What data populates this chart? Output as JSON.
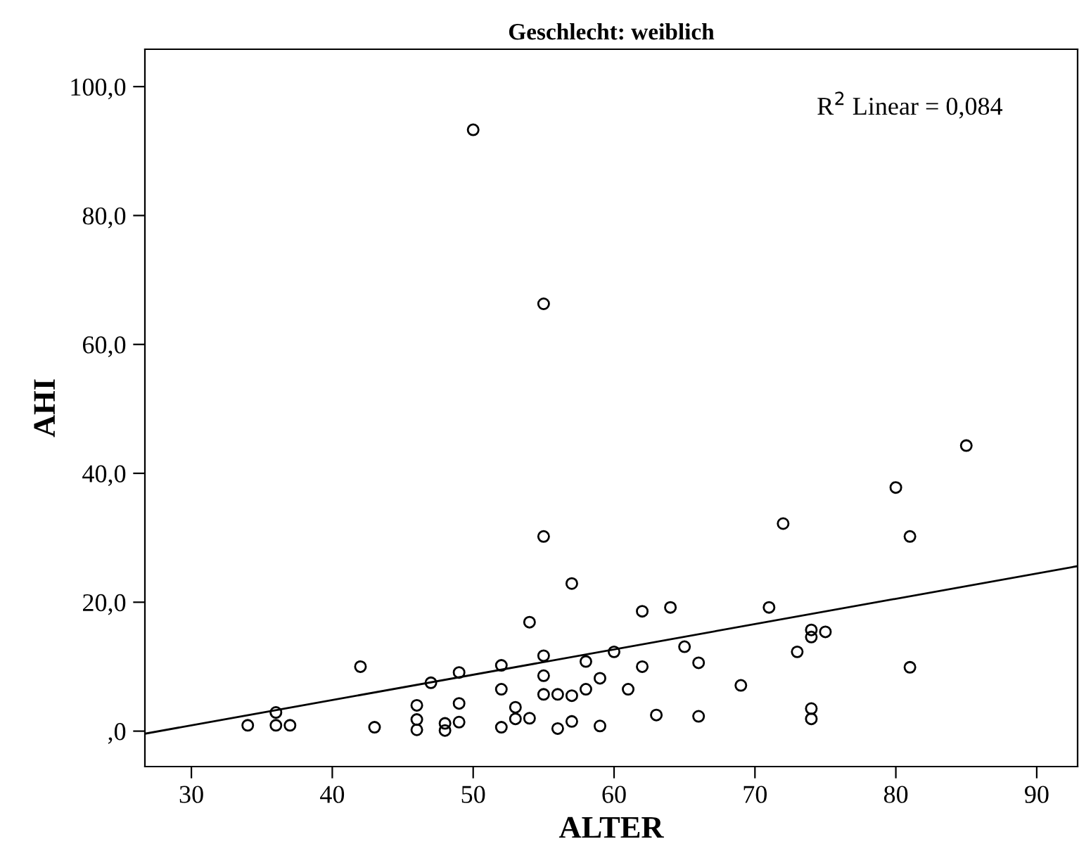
{
  "chart_data": {
    "type": "scatter",
    "title": "Geschlecht: weiblich",
    "xlabel": "ALTER",
    "ylabel": "AHI",
    "annotations": [
      "R$^{2}$ Linear = 0,084"
    ],
    "xlim": [
      26.7,
      92.9
    ],
    "xticks": [
      30,
      40,
      50,
      60,
      70,
      80,
      90
    ],
    "ylim": [
      -5.5,
      105.8
    ],
    "yticks": [
      {
        "value": 0,
        "label": ",0"
      },
      {
        "value": 20,
        "label": "20,0"
      },
      {
        "value": 40,
        "label": "40,0"
      },
      {
        "value": 60,
        "label": "60,0"
      },
      {
        "value": 80,
        "label": "80,0"
      },
      {
        "value": 100,
        "label": "100,0"
      }
    ],
    "grid": false,
    "legend": false,
    "series": [
      {
        "marker": "circle",
        "color": "#000000",
        "x": [
          34,
          36,
          36,
          37,
          42,
          43,
          46,
          46,
          46,
          47,
          48,
          48,
          49,
          49,
          49,
          50,
          52,
          52,
          52,
          53,
          53,
          54,
          54,
          55,
          55,
          55,
          55,
          55,
          56,
          56,
          57,
          57,
          57,
          58,
          58,
          59,
          59,
          60,
          61,
          62,
          62,
          63,
          64,
          65,
          66,
          66,
          69,
          71,
          72,
          73,
          74,
          74,
          74,
          74,
          75,
          80,
          81,
          81,
          85
        ],
        "values": [
          0.9,
          2.9,
          0.9,
          0.9,
          10.0,
          0.6,
          4.0,
          1.8,
          0.2,
          7.5,
          1.2,
          0.1,
          9.1,
          4.3,
          1.4,
          93.3,
          10.2,
          6.5,
          0.6,
          3.7,
          1.9,
          16.9,
          2.0,
          66.3,
          30.2,
          11.7,
          8.6,
          5.7,
          5.7,
          0.4,
          22.9,
          5.5,
          1.5,
          10.8,
          6.5,
          8.2,
          0.8,
          12.3,
          6.5,
          18.6,
          10.0,
          2.5,
          19.2,
          13.1,
          10.6,
          2.3,
          7.1,
          19.2,
          32.2,
          12.3,
          15.7,
          14.6,
          3.5,
          1.9,
          15.4,
          37.8,
          30.2,
          9.9,
          44.3
        ]
      },
      {
        "type": "line",
        "color": "#000000",
        "marker": "none",
        "x": [
          26.7,
          92.9
        ],
        "values": [
          -0.4,
          25.6
        ]
      }
    ]
  }
}
